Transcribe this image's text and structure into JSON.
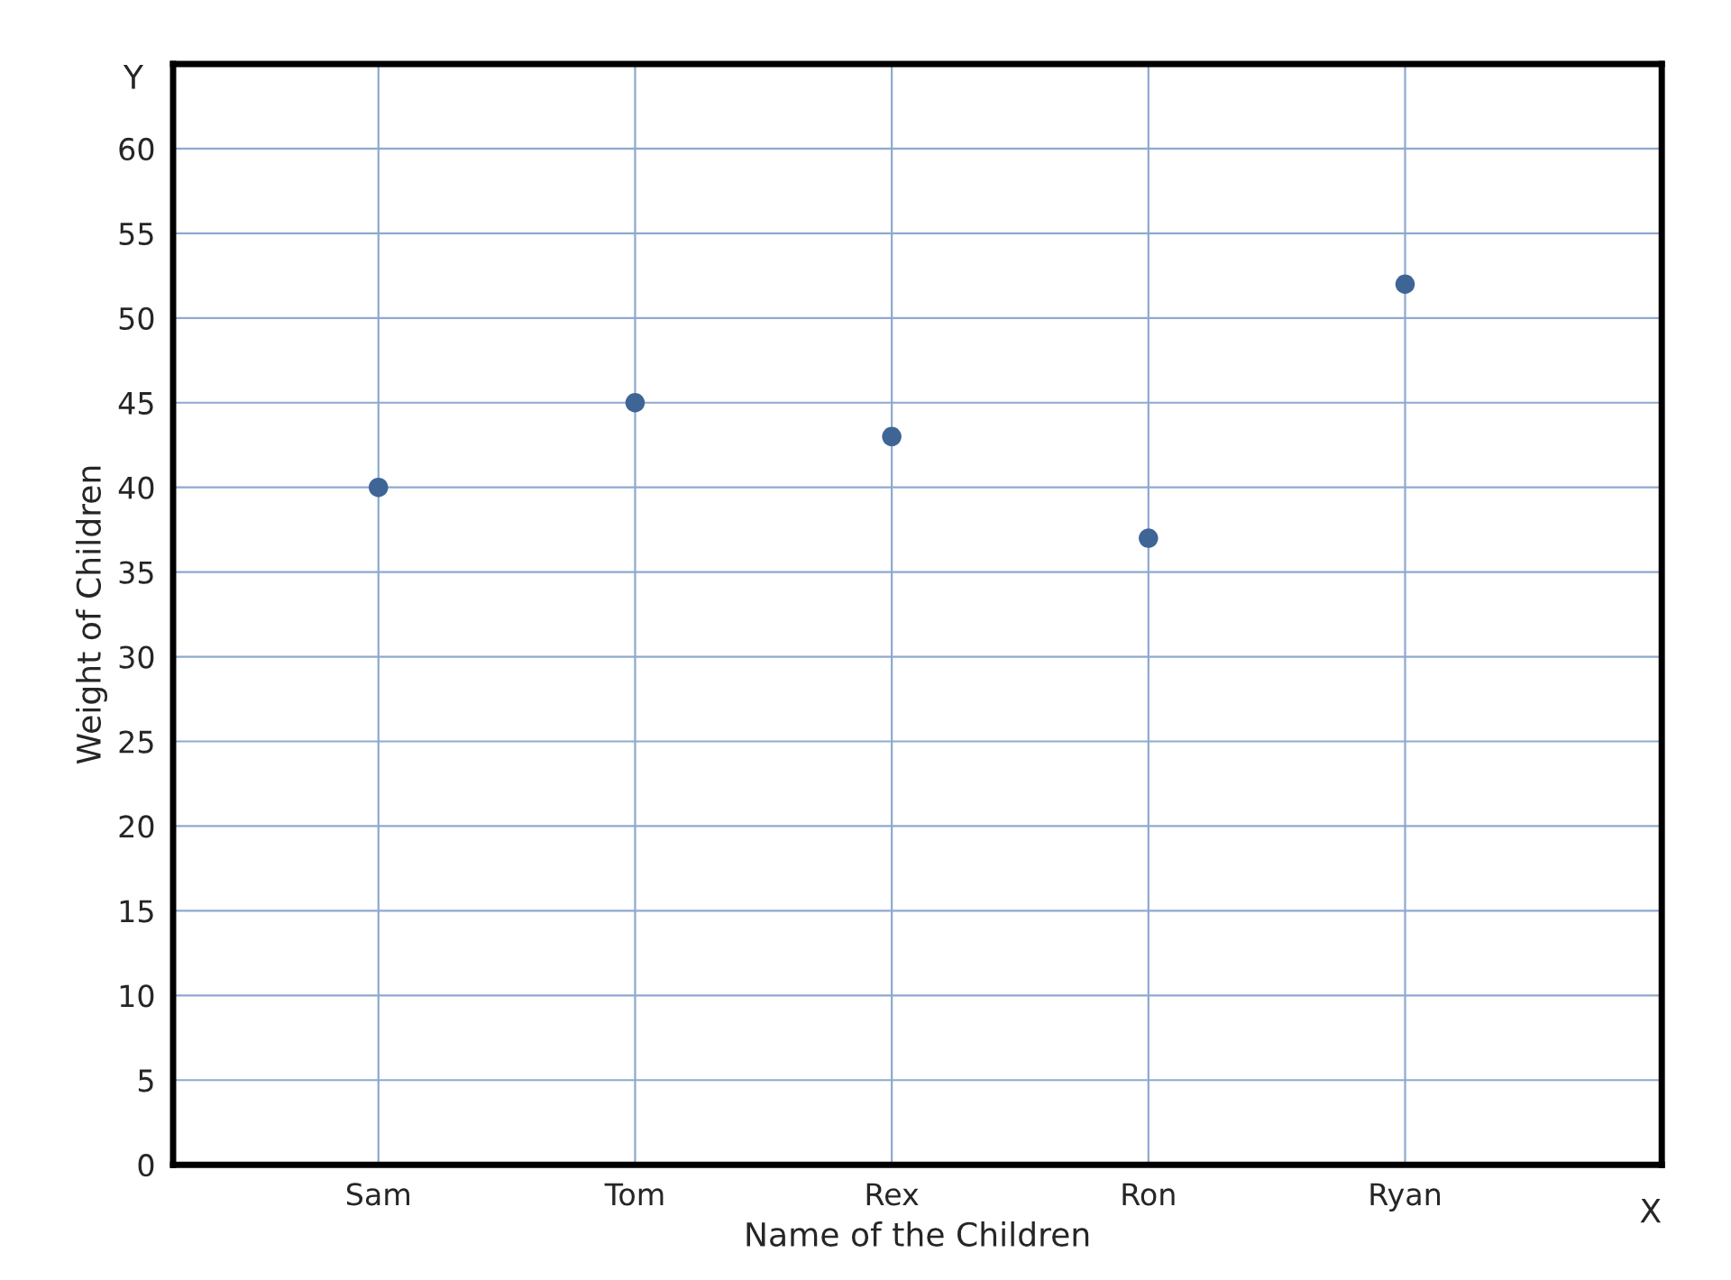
{
  "chart_data": {
    "type": "scatter",
    "xlabel": "Name of the Children",
    "ylabel": "Weight of Children",
    "categories": [
      "Sam",
      "Tom",
      "Rex",
      "Ron",
      "Ryan"
    ],
    "series": [
      {
        "color": "#3f6596",
        "values": [
          40,
          45,
          43,
          37,
          52
        ]
      }
    ],
    "ylim": [
      0,
      65
    ],
    "yticks": [
      0,
      5,
      10,
      15,
      20,
      25,
      30,
      35,
      40,
      45,
      50,
      55,
      60
    ],
    "grid": true,
    "marker": "circle",
    "annotations": [
      "Y",
      "X"
    ]
  }
}
